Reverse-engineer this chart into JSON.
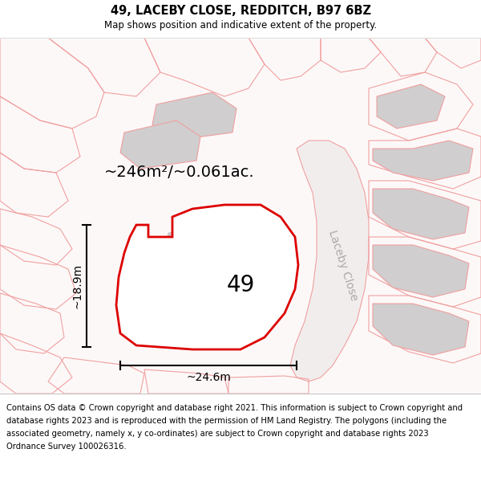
{
  "title_line1": "49, LACEBY CLOSE, REDDITCH, B97 6BZ",
  "title_line2": "Map shows position and indicative extent of the property.",
  "area_label": "~246m²/~0.061ac.",
  "number_label": "49",
  "width_label": "~24.6m",
  "height_label": "~18.9m",
  "road_label": "Laceby Close",
  "map_bg": "#fdf8f8",
  "plot_outline_color": "#dd0000",
  "plot_fill_color": "#ffffff",
  "pink": "#f0a0a0",
  "pink_light": "#f5c0c0",
  "building_fill": "#d0cecf",
  "road_fill": "#f0eaea",
  "title_fontsize": 10.5,
  "subtitle_fontsize": 8.5,
  "footer_fontsize": 7.2,
  "area_fontsize": 14,
  "number_fontsize": 20,
  "road_label_fontsize": 10,
  "dim_fontsize": 10,
  "footer_lines": [
    "Contains OS data © Crown copyright and database right 2021. This information is subject to Crown copyright and",
    "database rights 2023 and is reproduced with the permission of HM Land Registry. The polygons (including the",
    "associated geometry, namely x, y co-ordinates) are subject to Crown copyright and database rights 2023",
    "Ordnance Survey 100026316."
  ]
}
